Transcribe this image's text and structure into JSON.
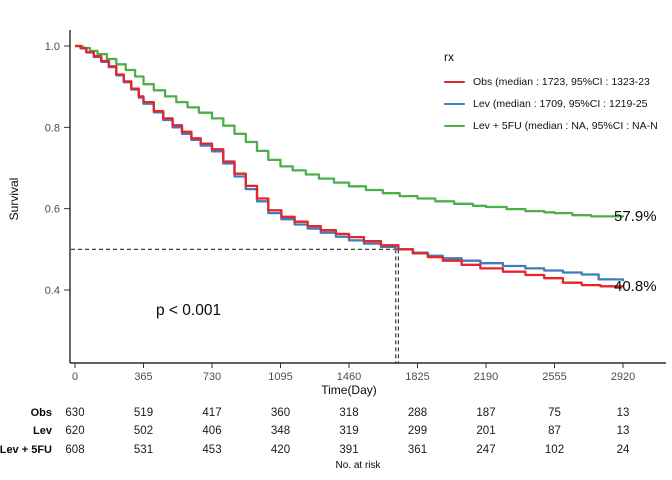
{
  "axes": {
    "x_label": "Time(Day)",
    "y_label": "Survival"
  },
  "legend": {
    "title": "rx",
    "entries": [
      {
        "name": "Obs",
        "label": "Obs (median : 1723, 95%CI : 1323-23",
        "color": "#e3262a"
      },
      {
        "name": "Lev",
        "label": "Lev (median : 1709, 95%CI : 1219-25",
        "color": "#3f7cb9"
      },
      {
        "name": "Lev + 5FU",
        "label": "Lev + 5FU (median : NA, 95%CI : NA-N",
        "color": "#4daf4a"
      }
    ]
  },
  "annotations": {
    "p_value": "p < 0.001",
    "final_green": "57.9%",
    "final_red": "40.8%"
  },
  "risk_table": {
    "title": "No. at risk",
    "time_points": [
      0,
      365,
      730,
      1095,
      1460,
      1825,
      2190,
      2555,
      2920
    ],
    "rows": [
      {
        "label": "Obs",
        "values": [
          630,
          519,
          417,
          360,
          318,
          288,
          187,
          75,
          13
        ]
      },
      {
        "label": "Lev",
        "values": [
          620,
          502,
          406,
          348,
          319,
          299,
          201,
          87,
          13
        ]
      },
      {
        "label": "Lev + 5FU",
        "values": [
          608,
          531,
          453,
          420,
          391,
          361,
          247,
          102,
          24
        ]
      }
    ]
  },
  "chart_data": {
    "type": "line",
    "subtype": "kaplan-meier-step",
    "title": "",
    "xlabel": "Time(Day)",
    "ylabel": "Survival",
    "xlim": [
      0,
      2920
    ],
    "ylim_shown": [
      0.4,
      1.0
    ],
    "x_ticks": [
      0,
      365,
      730,
      1095,
      1460,
      1825,
      2190,
      2555,
      2920
    ],
    "y_ticks": [
      1.0,
      0.8,
      0.6,
      0.4
    ],
    "grid": false,
    "legend_position": "top-right",
    "median_reference": {
      "survival": 0.5,
      "times": [
        1709,
        1723
      ]
    },
    "series": [
      {
        "name": "Obs",
        "color": "#e3262a",
        "final_label": "40.8%",
        "points": [
          [
            0,
            1
          ],
          [
            30,
            0.995
          ],
          [
            60,
            0.985
          ],
          [
            100,
            0.975
          ],
          [
            140,
            0.963
          ],
          [
            180,
            0.95
          ],
          [
            220,
            0.93
          ],
          [
            260,
            0.913
          ],
          [
            300,
            0.895
          ],
          [
            340,
            0.876
          ],
          [
            365,
            0.862
          ],
          [
            420,
            0.84
          ],
          [
            470,
            0.822
          ],
          [
            520,
            0.805
          ],
          [
            570,
            0.789
          ],
          [
            620,
            0.773
          ],
          [
            670,
            0.76
          ],
          [
            730,
            0.746
          ],
          [
            790,
            0.716
          ],
          [
            850,
            0.686
          ],
          [
            910,
            0.656
          ],
          [
            970,
            0.625
          ],
          [
            1030,
            0.596
          ],
          [
            1100,
            0.58
          ],
          [
            1170,
            0.568
          ],
          [
            1240,
            0.557
          ],
          [
            1310,
            0.547
          ],
          [
            1390,
            0.538
          ],
          [
            1460,
            0.53
          ],
          [
            1540,
            0.52
          ],
          [
            1630,
            0.51
          ],
          [
            1723,
            0.5
          ],
          [
            1800,
            0.49
          ],
          [
            1880,
            0.481
          ],
          [
            1960,
            0.472
          ],
          [
            2060,
            0.462
          ],
          [
            2160,
            0.453
          ],
          [
            2280,
            0.445
          ],
          [
            2400,
            0.437
          ],
          [
            2500,
            0.429
          ],
          [
            2600,
            0.418
          ],
          [
            2700,
            0.412
          ],
          [
            2800,
            0.409
          ],
          [
            2920,
            0.408
          ]
        ]
      },
      {
        "name": "Lev",
        "color": "#3f7cb9",
        "final_label": "",
        "points": [
          [
            0,
            1
          ],
          [
            30,
            0.994
          ],
          [
            60,
            0.984
          ],
          [
            100,
            0.973
          ],
          [
            140,
            0.961
          ],
          [
            180,
            0.948
          ],
          [
            220,
            0.928
          ],
          [
            260,
            0.911
          ],
          [
            300,
            0.893
          ],
          [
            340,
            0.873
          ],
          [
            365,
            0.858
          ],
          [
            420,
            0.837
          ],
          [
            470,
            0.818
          ],
          [
            520,
            0.8
          ],
          [
            570,
            0.784
          ],
          [
            620,
            0.769
          ],
          [
            670,
            0.755
          ],
          [
            730,
            0.741
          ],
          [
            790,
            0.711
          ],
          [
            850,
            0.679
          ],
          [
            910,
            0.648
          ],
          [
            970,
            0.618
          ],
          [
            1030,
            0.589
          ],
          [
            1100,
            0.574
          ],
          [
            1170,
            0.561
          ],
          [
            1240,
            0.551
          ],
          [
            1310,
            0.541
          ],
          [
            1390,
            0.531
          ],
          [
            1460,
            0.522
          ],
          [
            1540,
            0.514
          ],
          [
            1630,
            0.506
          ],
          [
            1709,
            0.5
          ],
          [
            1800,
            0.492
          ],
          [
            1880,
            0.484
          ],
          [
            1960,
            0.478
          ],
          [
            2060,
            0.472
          ],
          [
            2160,
            0.466
          ],
          [
            2280,
            0.459
          ],
          [
            2400,
            0.453
          ],
          [
            2500,
            0.448
          ],
          [
            2600,
            0.443
          ],
          [
            2700,
            0.438
          ],
          [
            2790,
            0.426
          ],
          [
            2920,
            0.422
          ]
        ]
      },
      {
        "name": "Lev + 5FU",
        "color": "#4daf4a",
        "final_label": "57.9%",
        "points": [
          [
            0,
            1
          ],
          [
            40,
            0.995
          ],
          [
            80,
            0.988
          ],
          [
            120,
            0.98
          ],
          [
            170,
            0.968
          ],
          [
            220,
            0.955
          ],
          [
            270,
            0.941
          ],
          [
            320,
            0.925
          ],
          [
            365,
            0.906
          ],
          [
            420,
            0.891
          ],
          [
            480,
            0.876
          ],
          [
            540,
            0.862
          ],
          [
            600,
            0.849
          ],
          [
            660,
            0.836
          ],
          [
            730,
            0.822
          ],
          [
            790,
            0.804
          ],
          [
            850,
            0.784
          ],
          [
            910,
            0.764
          ],
          [
            970,
            0.742
          ],
          [
            1030,
            0.72
          ],
          [
            1095,
            0.704
          ],
          [
            1160,
            0.694
          ],
          [
            1230,
            0.684
          ],
          [
            1300,
            0.674
          ],
          [
            1380,
            0.664
          ],
          [
            1460,
            0.655
          ],
          [
            1550,
            0.646
          ],
          [
            1640,
            0.638
          ],
          [
            1730,
            0.631
          ],
          [
            1825,
            0.625
          ],
          [
            1920,
            0.618
          ],
          [
            2020,
            0.612
          ],
          [
            2120,
            0.607
          ],
          [
            2190,
            0.604
          ],
          [
            2300,
            0.599
          ],
          [
            2400,
            0.594
          ],
          [
            2500,
            0.591
          ],
          [
            2555,
            0.589
          ],
          [
            2650,
            0.584
          ],
          [
            2750,
            0.581
          ],
          [
            2920,
            0.579
          ]
        ]
      }
    ]
  },
  "style_colors": {
    "axis_line": "#000000",
    "tick_label": "#4d4d4d",
    "dashed_reference": "#2a2a2a"
  }
}
